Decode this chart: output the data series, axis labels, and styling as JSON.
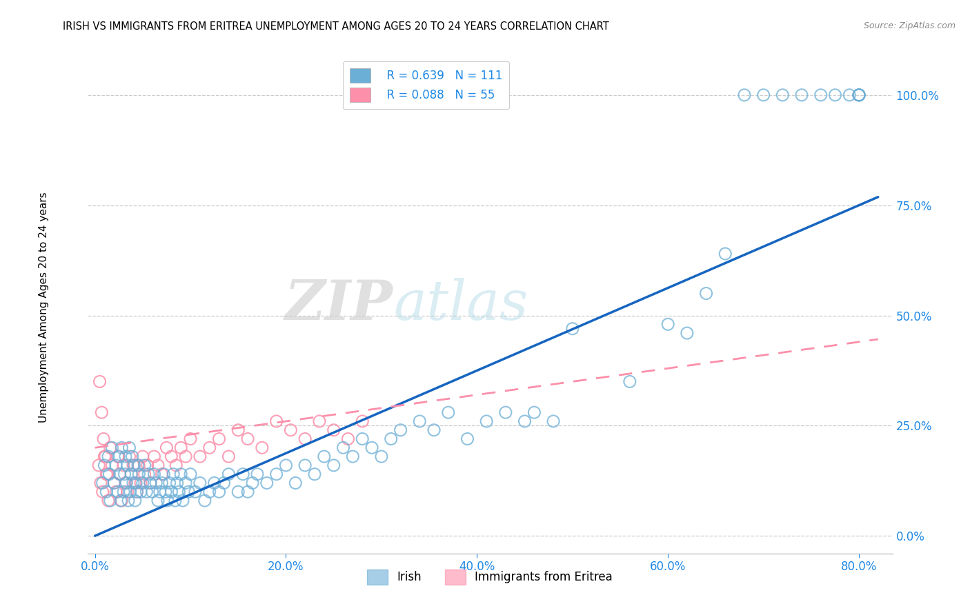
{
  "title": "IRISH VS IMMIGRANTS FROM ERITREA UNEMPLOYMENT AMONG AGES 20 TO 24 YEARS CORRELATION CHART",
  "source": "Source: ZipAtlas.com",
  "ylabel": "Unemployment Among Ages 20 to 24 years",
  "irish_color": "#6baed6",
  "eritrea_color": "#fc8faa",
  "irish_R": 0.639,
  "irish_N": 111,
  "eritrea_R": 0.088,
  "eritrea_N": 55,
  "legend_label_irish": "Irish",
  "legend_label_eritrea": "Immigrants from Eritrea",
  "watermark_zip": "ZIP",
  "watermark_atlas": "atlas",
  "xlim": [
    -0.008,
    0.835
  ],
  "ylim": [
    -0.04,
    1.09
  ],
  "xticks": [
    0.0,
    0.2,
    0.4,
    0.6,
    0.8
  ],
  "yticks": [
    0.0,
    0.25,
    0.5,
    0.75,
    1.0
  ],
  "irish_trendline_x0": 0.0,
  "irish_trendline_y0": 0.0,
  "irish_trendline_x1": 0.8,
  "irish_trendline_y1": 0.75,
  "eritrea_trendline_x0": 0.0,
  "eritrea_trendline_y0": 0.2,
  "eritrea_trendline_x1": 0.8,
  "eritrea_trendline_y1": 0.44,
  "irish_x": [
    0.008,
    0.01,
    0.012,
    0.014,
    0.015,
    0.016,
    0.018,
    0.02,
    0.022,
    0.024,
    0.025,
    0.026,
    0.027,
    0.028,
    0.03,
    0.031,
    0.032,
    0.033,
    0.034,
    0.035,
    0.036,
    0.037,
    0.038,
    0.039,
    0.04,
    0.041,
    0.042,
    0.043,
    0.044,
    0.045,
    0.046,
    0.048,
    0.05,
    0.052,
    0.054,
    0.056,
    0.058,
    0.06,
    0.062,
    0.064,
    0.066,
    0.068,
    0.07,
    0.072,
    0.074,
    0.076,
    0.078,
    0.08,
    0.082,
    0.084,
    0.086,
    0.088,
    0.09,
    0.092,
    0.095,
    0.098,
    0.1,
    0.105,
    0.11,
    0.115,
    0.12,
    0.125,
    0.13,
    0.135,
    0.14,
    0.15,
    0.155,
    0.16,
    0.165,
    0.17,
    0.18,
    0.19,
    0.2,
    0.21,
    0.22,
    0.23,
    0.24,
    0.25,
    0.26,
    0.27,
    0.28,
    0.29,
    0.3,
    0.31,
    0.32,
    0.34,
    0.355,
    0.37,
    0.39,
    0.41,
    0.43,
    0.45,
    0.46,
    0.48,
    0.5,
    0.56,
    0.6,
    0.62,
    0.64,
    0.66,
    0.68,
    0.7,
    0.72,
    0.74,
    0.76,
    0.775,
    0.79,
    0.8,
    0.8,
    0.8,
    0.8
  ],
  "irish_y": [
    0.12,
    0.16,
    0.1,
    0.18,
    0.14,
    0.08,
    0.2,
    0.12,
    0.16,
    0.1,
    0.18,
    0.14,
    0.08,
    0.2,
    0.1,
    0.14,
    0.18,
    0.12,
    0.16,
    0.08,
    0.2,
    0.1,
    0.14,
    0.18,
    0.12,
    0.16,
    0.08,
    0.12,
    0.1,
    0.16,
    0.14,
    0.1,
    0.12,
    0.16,
    0.1,
    0.14,
    0.12,
    0.1,
    0.14,
    0.12,
    0.08,
    0.1,
    0.12,
    0.14,
    0.1,
    0.08,
    0.12,
    0.1,
    0.14,
    0.08,
    0.12,
    0.1,
    0.14,
    0.08,
    0.12,
    0.1,
    0.14,
    0.1,
    0.12,
    0.08,
    0.1,
    0.12,
    0.1,
    0.12,
    0.14,
    0.1,
    0.14,
    0.1,
    0.12,
    0.14,
    0.12,
    0.14,
    0.16,
    0.12,
    0.16,
    0.14,
    0.18,
    0.16,
    0.2,
    0.18,
    0.22,
    0.2,
    0.18,
    0.22,
    0.24,
    0.26,
    0.24,
    0.28,
    0.22,
    0.26,
    0.28,
    0.26,
    0.28,
    0.26,
    0.47,
    0.35,
    0.48,
    0.46,
    0.55,
    0.64,
    1.0,
    1.0,
    1.0,
    1.0,
    1.0,
    1.0,
    1.0,
    1.0,
    1.0,
    1.0,
    1.0
  ],
  "eritrea_x": [
    0.004,
    0.006,
    0.008,
    0.01,
    0.012,
    0.014,
    0.016,
    0.018,
    0.02,
    0.022,
    0.024,
    0.026,
    0.028,
    0.03,
    0.032,
    0.034,
    0.036,
    0.038,
    0.04,
    0.042,
    0.044,
    0.046,
    0.048,
    0.05,
    0.052,
    0.055,
    0.058,
    0.062,
    0.066,
    0.07,
    0.075,
    0.08,
    0.085,
    0.09,
    0.095,
    0.1,
    0.11,
    0.12,
    0.13,
    0.14,
    0.15,
    0.16,
    0.175,
    0.19,
    0.205,
    0.22,
    0.235,
    0.25,
    0.265,
    0.28,
    0.005,
    0.007,
    0.009,
    0.011,
    0.013
  ],
  "eritrea_y": [
    0.16,
    0.12,
    0.1,
    0.18,
    0.14,
    0.08,
    0.2,
    0.16,
    0.12,
    0.1,
    0.18,
    0.14,
    0.08,
    0.16,
    0.12,
    0.1,
    0.18,
    0.14,
    0.16,
    0.12,
    0.1,
    0.16,
    0.12,
    0.18,
    0.14,
    0.16,
    0.12,
    0.18,
    0.16,
    0.14,
    0.2,
    0.18,
    0.16,
    0.2,
    0.18,
    0.22,
    0.18,
    0.2,
    0.22,
    0.18,
    0.24,
    0.22,
    0.2,
    0.26,
    0.24,
    0.22,
    0.26,
    0.24,
    0.22,
    0.26,
    0.35,
    0.28,
    0.22,
    0.18,
    0.14
  ]
}
